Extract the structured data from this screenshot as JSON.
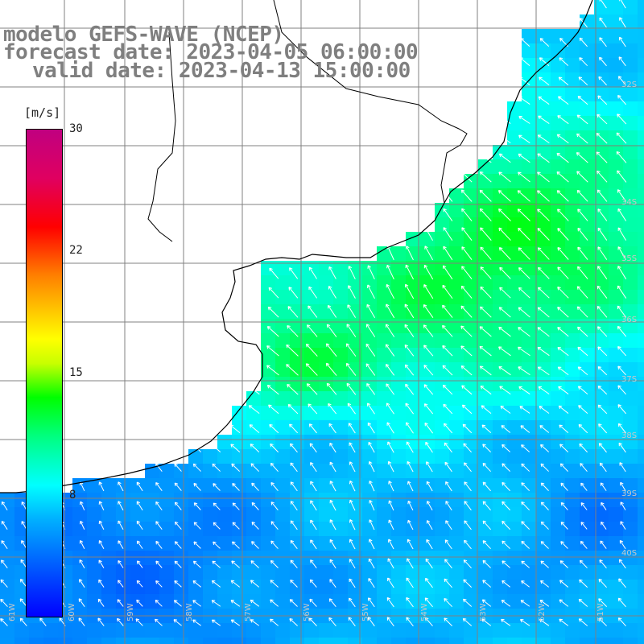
{
  "title": {
    "line1": "modelo GEFS-WAVE (NCEP)",
    "line2": "forecast date: 2023-04-05 06:00:00",
    "line3": "valid date: 2023-04-13 15:00:00"
  },
  "colorbar": {
    "unit": "[m/s]",
    "labels": [
      "30",
      "22",
      "15",
      "8"
    ],
    "min": 0,
    "max": 30,
    "colors": [
      "#0000ff",
      "#00b0ff",
      "#00ffff",
      "#00ff80",
      "#00ff00",
      "#ffff00",
      "#ff8000",
      "#ff0000",
      "#c00080"
    ]
  },
  "map": {
    "land_color": "#ffffff",
    "coast_color": "#000000",
    "grid_color": "#808080",
    "arrow_color": "#ffffff",
    "lat_labels": [
      "32S",
      "34S",
      "35S",
      "36S",
      "37S",
      "38S",
      "39S",
      "40S"
    ],
    "lon_labels": [
      "61W",
      "60W",
      "59W",
      "58W",
      "57W",
      "56W",
      "55W",
      "54W",
      "53W",
      "52W",
      "51W"
    ]
  }
}
